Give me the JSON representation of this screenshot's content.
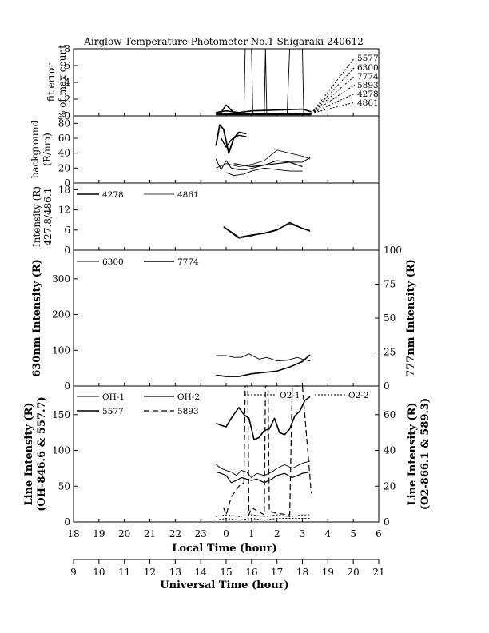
{
  "title": "Airglow Temperature Photometer No.1  Shigaraki  240612",
  "x_axis": {
    "local_label": "Local Time (hour)",
    "local_ticks": [
      "18",
      "19",
      "20",
      "21",
      "22",
      "23",
      "0",
      "1",
      "2",
      "3",
      "4",
      "5",
      "6"
    ],
    "ut_label": "Universal Time (hour)",
    "ut_ticks": [
      "9",
      "10",
      "11",
      "12",
      "13",
      "14",
      "15",
      "16",
      "17",
      "18",
      "19",
      "20",
      "21"
    ]
  },
  "panels": {
    "fit": {
      "ylabel1": "fit error",
      "ylabel2": "% of max count",
      "yticks": [
        "0",
        "2",
        "4",
        "6",
        "8"
      ],
      "channel_labels": [
        "5577",
        "6300",
        "7774",
        "5893",
        "4278",
        "4861"
      ]
    },
    "bg": {
      "ylabel1": "background",
      "ylabel2": "(R/nm)",
      "yticks": [
        "0",
        "20",
        "40",
        "60",
        "80"
      ]
    },
    "blue": {
      "ylabel1": "Intensity (R)",
      "ylabel2": "427.8/486.1",
      "yticks": [
        "0",
        "6",
        "12",
        "18"
      ],
      "legend": [
        "4278",
        "4861"
      ]
    },
    "red": {
      "ylabel_left": "630nm Intensity (R)",
      "ylabel_right": "777nm Intensity (R)",
      "yticks_left": [
        "0",
        "100",
        "200",
        "300"
      ],
      "yticks_right": [
        "0",
        "25",
        "50",
        "75",
        "100"
      ],
      "legend": [
        "6300",
        "7774"
      ]
    },
    "line": {
      "ylabel_left1": "Line Intensity (R)",
      "ylabel_left2": "(OH-846.6 & 557.7)",
      "ylabel_right1": "Line Intensity (R)",
      "ylabel_right2": "(O2-866.1 & 589.3)",
      "yticks_left": [
        "0",
        "50",
        "100",
        "150"
      ],
      "yticks_right": [
        "0",
        "20",
        "40",
        "60"
      ],
      "legend": [
        "OH-1",
        "OH-2",
        "O2-1",
        "O2-2",
        "5577",
        "5893"
      ]
    }
  },
  "chart_data": [
    {
      "type": "line",
      "title": "Airglow Temperature Photometer No.1  Shigaraki  240612",
      "ylabel": "fit error % of max count",
      "xlabel": "Local Time (hour)",
      "xlim": [
        18,
        30
      ],
      "ylim": [
        0,
        8
      ],
      "series": [
        {
          "name": "5577",
          "points": [
            [
              23.6,
              0.2
            ],
            [
              23.8,
              0.4
            ],
            [
              24.0,
              1.3
            ],
            [
              24.3,
              0.4
            ],
            [
              24.7,
              0.3
            ],
            [
              25.2,
              0.3
            ],
            [
              26.0,
              0.3
            ],
            [
              27.0,
              0.3
            ],
            [
              27.35,
              0.3
            ]
          ]
        },
        {
          "name": "6300",
          "points": [
            [
              23.6,
              0.3
            ],
            [
              24.0,
              0.3
            ],
            [
              24.4,
              0.3
            ],
            [
              24.7,
              0.3
            ],
            [
              24.75,
              8
            ],
            [
              25.0,
              8
            ],
            [
              25.05,
              0.3
            ],
            [
              25.5,
              0.3
            ],
            [
              25.55,
              8
            ],
            [
              25.6,
              0.3
            ],
            [
              26.4,
              0.3
            ],
            [
              26.5,
              8
            ],
            [
              27.0,
              8
            ],
            [
              27.05,
              0.3
            ],
            [
              27.35,
              0.3
            ]
          ]
        },
        {
          "name": "7774",
          "points": [
            [
              23.6,
              0.4
            ],
            [
              24.0,
              0.6
            ],
            [
              24.5,
              0.4
            ],
            [
              25.0,
              0.6
            ],
            [
              26.0,
              0.7
            ],
            [
              27.0,
              0.8
            ],
            [
              27.35,
              0.5
            ]
          ]
        },
        {
          "name": "5893",
          "points": [
            [
              23.6,
              0.3
            ],
            [
              24.0,
              0.3
            ],
            [
              25.0,
              0.3
            ],
            [
              26.0,
              0.3
            ],
            [
              27.35,
              0.3
            ]
          ]
        },
        {
          "name": "4278",
          "points": [
            [
              23.6,
              0.2
            ],
            [
              24.0,
              0.2
            ],
            [
              25.0,
              0.2
            ],
            [
              26.0,
              0.2
            ],
            [
              27.35,
              0.2
            ]
          ]
        },
        {
          "name": "4861",
          "points": [
            [
              23.6,
              0.1
            ],
            [
              24.0,
              0.1
            ],
            [
              25.0,
              0.1
            ],
            [
              26.0,
              0.1
            ],
            [
              27.35,
              0.1
            ]
          ]
        }
      ]
    },
    {
      "type": "line",
      "ylabel": "background (R/nm)",
      "xlabel": "Local Time (hour)",
      "xlim": [
        18,
        30
      ],
      "ylim": [
        0,
        90
      ],
      "series": [
        {
          "name": "5577",
          "points": [
            [
              23.6,
              50
            ],
            [
              23.75,
              78
            ],
            [
              23.9,
              72
            ],
            [
              24.1,
              40
            ],
            [
              24.3,
              60
            ],
            [
              24.5,
              68
            ],
            [
              24.8,
              66
            ]
          ]
        },
        {
          "name": "6300",
          "points": [
            [
              23.8,
              60
            ],
            [
              24.0,
              48
            ],
            [
              24.2,
              58
            ],
            [
              24.5,
              64
            ],
            [
              24.8,
              62
            ]
          ]
        },
        {
          "name": "7774",
          "points": [
            [
              23.6,
              32
            ],
            [
              23.8,
              18
            ],
            [
              24.0,
              30
            ],
            [
              24.2,
              20
            ],
            [
              24.5,
              18
            ],
            [
              24.8,
              18
            ],
            [
              25.5,
              24
            ],
            [
              26.0,
              30
            ],
            [
              26.5,
              28
            ],
            [
              27.0,
              28
            ],
            [
              27.3,
              34
            ]
          ]
        },
        {
          "name": "5893",
          "points": [
            [
              23.6,
              20
            ],
            [
              24.0,
              26
            ],
            [
              24.5,
              22
            ],
            [
              25.0,
              25
            ],
            [
              25.5,
              30
            ],
            [
              26.0,
              44
            ],
            [
              26.5,
              40
            ],
            [
              27.0,
              36
            ],
            [
              27.3,
              32
            ]
          ]
        },
        {
          "name": "4278",
          "points": [
            [
              24.0,
              14
            ],
            [
              24.3,
              10
            ],
            [
              24.7,
              12
            ],
            [
              25.0,
              16
            ],
            [
              25.5,
              20
            ],
            [
              26.0,
              18
            ],
            [
              26.5,
              16
            ],
            [
              27.0,
              16
            ]
          ]
        },
        {
          "name": "4861",
          "points": [
            [
              24.3,
              26
            ],
            [
              25.0,
              22
            ],
            [
              25.5,
              24
            ],
            [
              26.0,
              26
            ],
            [
              26.5,
              28
            ],
            [
              27.0,
              22
            ]
          ]
        }
      ]
    },
    {
      "type": "line",
      "ylabel": "Intensity (R) 427.8/486.1",
      "xlabel": "Local Time (hour)",
      "xlim": [
        18,
        30
      ],
      "ylim": [
        0,
        20
      ],
      "series": [
        {
          "name": "4278",
          "points": [
            [
              23.9,
              7.0
            ],
            [
              24.5,
              3.8
            ],
            [
              25.0,
              4.5
            ],
            [
              25.5,
              5.0
            ],
            [
              26.0,
              6.0
            ],
            [
              26.5,
              8.2
            ],
            [
              27.0,
              6.5
            ],
            [
              27.3,
              5.8
            ]
          ]
        },
        {
          "name": "4861",
          "points": [
            [
              23.9,
              6.8
            ],
            [
              24.5,
              3.5
            ],
            [
              25.0,
              4.2
            ],
            [
              25.5,
              5.2
            ],
            [
              26.0,
              6.2
            ],
            [
              26.5,
              7.8
            ],
            [
              27.0,
              6.4
            ],
            [
              27.3,
              5.6
            ]
          ]
        }
      ]
    },
    {
      "type": "line",
      "ylabel": "630nm Intensity (R)",
      "y2label": "777nm Intensity (R)",
      "xlabel": "Local Time (hour)",
      "xlim": [
        18,
        30
      ],
      "ylim": [
        0,
        380
      ],
      "y2lim": [
        0,
        100
      ],
      "series": [
        {
          "name": "6300",
          "points": [
            [
              23.6,
              85
            ],
            [
              24.0,
              85
            ],
            [
              24.3,
              80
            ],
            [
              24.6,
              80
            ],
            [
              24.9,
              90
            ],
            [
              25.3,
              75
            ],
            [
              25.6,
              80
            ],
            [
              26.0,
              70
            ],
            [
              26.4,
              72
            ],
            [
              26.8,
              80
            ],
            [
              27.0,
              75
            ],
            [
              27.3,
              70
            ]
          ]
        },
        {
          "name": "7774",
          "axis": "y2",
          "points": [
            [
              23.6,
              8
            ],
            [
              24.0,
              7
            ],
            [
              24.5,
              7
            ],
            [
              25.0,
              9
            ],
            [
              25.5,
              10
            ],
            [
              26.0,
              11
            ],
            [
              26.5,
              14
            ],
            [
              27.0,
              18
            ],
            [
              27.3,
              23
            ]
          ]
        }
      ]
    },
    {
      "type": "line",
      "ylabel": "Line Intensity (R) (OH-846.6 & 557.7)",
      "y2label": "Line Intensity (R) (O2-866.1 & 589.3)",
      "xlabel": "Local Time (hour)",
      "xlim": [
        18,
        30
      ],
      "ylim": [
        0,
        190
      ],
      "y2lim": [
        0,
        76
      ],
      "series": [
        {
          "name": "OH-1",
          "points": [
            [
              23.6,
              80
            ],
            [
              23.8,
              75
            ],
            [
              24.0,
              72
            ],
            [
              24.2,
              70
            ],
            [
              24.4,
              65
            ],
            [
              24.6,
              72
            ],
            [
              24.8,
              70
            ],
            [
              25.0,
              62
            ],
            [
              25.2,
              68
            ],
            [
              25.5,
              65
            ],
            [
              25.8,
              70
            ],
            [
              26.0,
              75
            ],
            [
              26.3,
              80
            ],
            [
              26.6,
              75
            ],
            [
              27.0,
              82
            ],
            [
              27.3,
              85
            ]
          ]
        },
        {
          "name": "OH-2",
          "points": [
            [
              23.6,
              70
            ],
            [
              23.8,
              68
            ],
            [
              24.0,
              65
            ],
            [
              24.2,
              55
            ],
            [
              24.4,
              58
            ],
            [
              24.6,
              62
            ],
            [
              24.8,
              60
            ],
            [
              25.0,
              58
            ],
            [
              25.2,
              60
            ],
            [
              25.5,
              55
            ],
            [
              25.8,
              60
            ],
            [
              26.0,
              65
            ],
            [
              26.3,
              68
            ],
            [
              26.6,
              62
            ],
            [
              27.0,
              68
            ],
            [
              27.3,
              70
            ]
          ]
        },
        {
          "name": "5577",
          "points": [
            [
              23.6,
              138
            ],
            [
              23.8,
              135
            ],
            [
              24.0,
              133
            ],
            [
              24.2,
              145
            ],
            [
              24.4,
              155
            ],
            [
              24.5,
              160
            ],
            [
              24.7,
              150
            ],
            [
              24.9,
              145
            ],
            [
              25.1,
              115
            ],
            [
              25.3,
              118
            ],
            [
              25.5,
              128
            ],
            [
              25.7,
              130
            ],
            [
              25.9,
              145
            ],
            [
              26.1,
              125
            ],
            [
              26.3,
              122
            ],
            [
              26.5,
              130
            ],
            [
              26.7,
              148
            ],
            [
              26.9,
              155
            ],
            [
              27.1,
              170
            ],
            [
              27.3,
              175
            ]
          ]
        },
        {
          "name": "O2-1",
          "axis": "y2",
          "points": [
            [
              23.6,
              3
            ],
            [
              24.0,
              4
            ],
            [
              24.5,
              3
            ],
            [
              25.0,
              4
            ],
            [
              25.5,
              3
            ],
            [
              26.0,
              4
            ],
            [
              26.5,
              3
            ],
            [
              27.0,
              4
            ],
            [
              27.3,
              4
            ]
          ]
        },
        {
          "name": "O2-2",
          "axis": "y2",
          "points": [
            [
              23.6,
              1
            ],
            [
              24.0,
              2
            ],
            [
              24.5,
              1
            ],
            [
              25.0,
              2
            ],
            [
              25.5,
              1
            ],
            [
              26.0,
              2
            ],
            [
              26.5,
              2
            ],
            [
              27.0,
              2
            ],
            [
              27.3,
              2
            ]
          ]
        },
        {
          "name": "5893",
          "points": [
            [
              23.9,
              20
            ],
            [
              24.0,
              10
            ],
            [
              24.2,
              35
            ],
            [
              24.5,
              50
            ],
            [
              24.7,
              55
            ],
            [
              24.75,
              190
            ],
            [
              24.85,
              190
            ],
            [
              24.9,
              10
            ],
            [
              25.0,
              20
            ],
            [
              25.5,
              10
            ],
            [
              25.55,
              190
            ],
            [
              25.65,
              190
            ],
            [
              25.7,
              15
            ],
            [
              26.0,
              12
            ],
            [
              26.5,
              10
            ],
            [
              26.6,
              190
            ],
            [
              27.0,
              190
            ],
            [
              27.35,
              40
            ]
          ]
        }
      ]
    }
  ]
}
